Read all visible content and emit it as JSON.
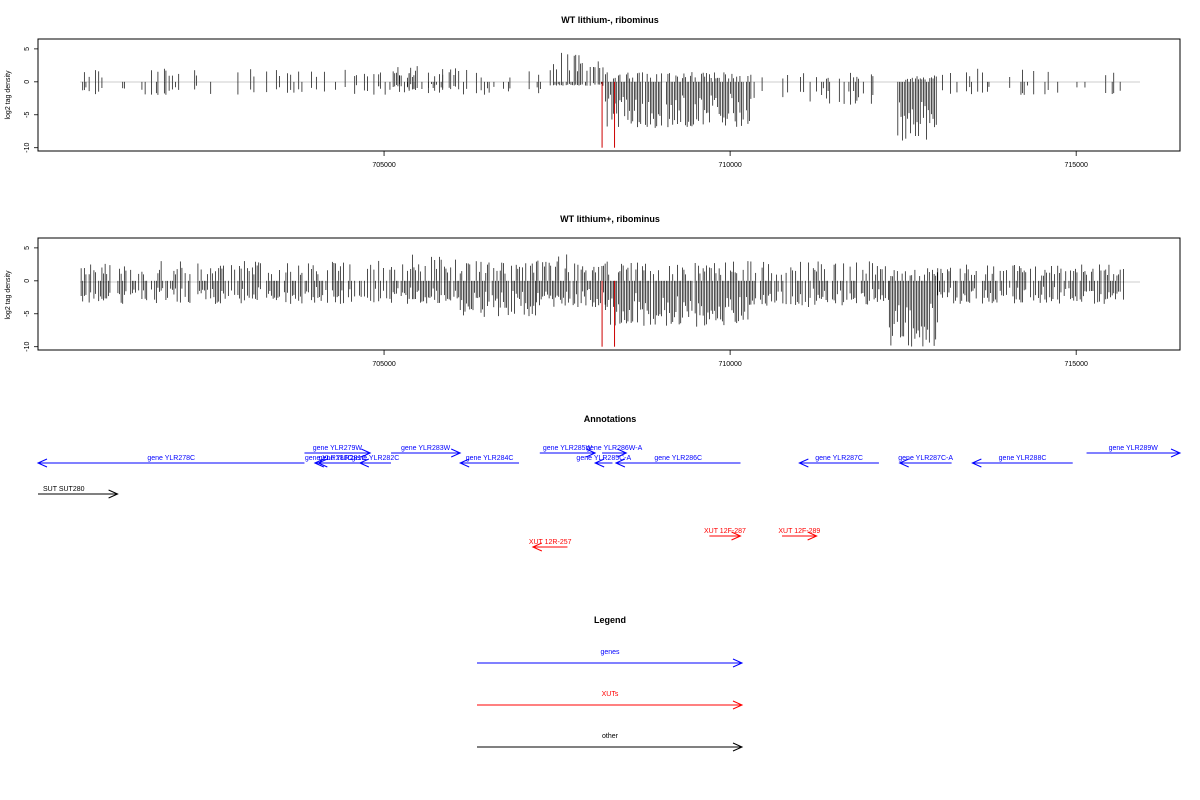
{
  "chart_data": [
    {
      "type": "bar",
      "title": "WT lithium-, ribominus",
      "ylabel": "log2 tag density",
      "xlabel": "",
      "xlim": [
        700000,
        716500
      ],
      "ylim": [
        -10.5,
        6.5
      ],
      "xticks": [
        705000,
        710000,
        715000
      ],
      "xtick_labels": [
        "705000",
        "710000",
        "715000"
      ],
      "yticks": [
        5,
        0,
        -5,
        -10
      ],
      "ytick_labels": [
        "5",
        "0",
        "-5",
        "-10"
      ],
      "grid": false,
      "markers": [
        {
          "x": 708150,
          "y": -10,
          "color": "#cc0000"
        },
        {
          "x": 708330,
          "y": -10,
          "color": "#cc0000"
        }
      ],
      "density_profile": [
        {
          "x": [
            700600,
            707400
          ],
          "pos": 2.0,
          "neg": -2.0,
          "density": 0.25
        },
        {
          "x": [
            704900,
            706100
          ],
          "pos": 3.0,
          "neg": -1.2,
          "density": 0.55
        },
        {
          "x": [
            707400,
            708200
          ],
          "pos": 4.8,
          "neg": -0.6,
          "density": 0.85
        },
        {
          "x": [
            708200,
            710300
          ],
          "pos": 1.5,
          "neg": -7.0,
          "density": 0.95
        },
        {
          "x": [
            710300,
            711300
          ],
          "pos": 1.5,
          "neg": -3.0,
          "density": 0.25
        },
        {
          "x": [
            711300,
            712100
          ],
          "pos": 1.5,
          "neg": -3.5,
          "density": 0.55
        },
        {
          "x": [
            712400,
            713000
          ],
          "pos": 1.0,
          "neg": -9.5,
          "density": 0.95
        },
        {
          "x": [
            713000,
            715700
          ],
          "pos": 2.0,
          "neg": -2.0,
          "density": 0.2
        }
      ]
    },
    {
      "type": "bar",
      "title": "WT lithium+, ribominus",
      "ylabel": "log2 tag density",
      "xlabel": "",
      "xlim": [
        700000,
        716500
      ],
      "ylim": [
        -10.5,
        6.5
      ],
      "xticks": [
        705000,
        710000,
        715000
      ],
      "xtick_labels": [
        "705000",
        "710000",
        "715000"
      ],
      "yticks": [
        5,
        0,
        -5,
        -10
      ],
      "ytick_labels": [
        "5",
        "0",
        "-5",
        "-10"
      ],
      "grid": false,
      "markers": [
        {
          "x": 708150,
          "y": -10,
          "color": "#cc0000"
        },
        {
          "x": 708330,
          "y": -10,
          "color": "#cc0000"
        }
      ],
      "density_profile": [
        {
          "x": [
            700600,
            704900
          ],
          "pos": 3.0,
          "neg": -3.5,
          "density": 0.75
        },
        {
          "x": [
            704900,
            706100
          ],
          "pos": 4.0,
          "neg": -3.5,
          "density": 0.9
        },
        {
          "x": [
            706100,
            707200
          ],
          "pos": 3.0,
          "neg": -5.5,
          "density": 0.9
        },
        {
          "x": [
            707200,
            708200
          ],
          "pos": 4.0,
          "neg": -4.0,
          "density": 0.9
        },
        {
          "x": [
            708200,
            710300
          ],
          "pos": 3.0,
          "neg": -7.0,
          "density": 0.98
        },
        {
          "x": [
            710300,
            712300
          ],
          "pos": 3.0,
          "neg": -4.0,
          "density": 0.8
        },
        {
          "x": [
            712300,
            713000
          ],
          "pos": 2.0,
          "neg": -10.0,
          "density": 0.98
        },
        {
          "x": [
            713000,
            715700
          ],
          "pos": 2.5,
          "neg": -3.5,
          "density": 0.7
        }
      ]
    }
  ],
  "annotations": {
    "title": "Annotations",
    "color_genes": "#0000ff",
    "color_xuts": "#ff0000",
    "color_other": "#000000",
    "features": [
      {
        "label": "gene YLR278C",
        "start": 700000,
        "end": 703850,
        "strand": "-",
        "class": "genes",
        "row": 1
      },
      {
        "label": "gene YLR279W",
        "start": 703850,
        "end": 704800,
        "strand": "+",
        "class": "genes",
        "row": 0
      },
      {
        "label": "gene YLR280C",
        "start": 704000,
        "end": 704400,
        "strand": "-",
        "class": "genes",
        "row": 1
      },
      {
        "label": "gene YLR281C",
        "start": 704050,
        "end": 704750,
        "strand": "-",
        "class": "genes",
        "row": 1
      },
      {
        "label": "gene YLR282C",
        "start": 704650,
        "end": 705100,
        "strand": "-",
        "class": "genes",
        "row": 1
      },
      {
        "label": "gene YLR283W",
        "start": 705100,
        "end": 706100,
        "strand": "+",
        "class": "genes",
        "row": 0
      },
      {
        "label": "gene YLR284C",
        "start": 706100,
        "end": 706950,
        "strand": "-",
        "class": "genes",
        "row": 1
      },
      {
        "label": "gene YLR285W",
        "start": 707250,
        "end": 708050,
        "strand": "+",
        "class": "genes",
        "row": 0
      },
      {
        "label": "gene YLR285C-A",
        "start": 708050,
        "end": 708300,
        "strand": "-",
        "class": "genes",
        "row": 1
      },
      {
        "label": "gene YLR286W-A",
        "start": 708150,
        "end": 708500,
        "strand": "+",
        "class": "genes",
        "row": 0
      },
      {
        "label": "gene YLR286C",
        "start": 708350,
        "end": 710150,
        "strand": "-",
        "class": "genes",
        "row": 1
      },
      {
        "label": "gene YLR287C",
        "start": 711000,
        "end": 712150,
        "strand": "-",
        "class": "genes",
        "row": 1
      },
      {
        "label": "gene YLR287C-A",
        "start": 712450,
        "end": 713200,
        "strand": "-",
        "class": "genes",
        "row": 1
      },
      {
        "label": "gene YLR288C",
        "start": 713500,
        "end": 714950,
        "strand": "-",
        "class": "genes",
        "row": 1
      },
      {
        "label": "gene YLR289W",
        "start": 715150,
        "end": 716500,
        "strand": "+",
        "class": "genes",
        "row": 0
      },
      {
        "label": "SUT SUT280",
        "start": 700000,
        "end": 701150,
        "strand": "+",
        "class": "other",
        "row": 3
      },
      {
        "label": "XUT 12R-257",
        "start": 707150,
        "end": 707650,
        "strand": "-",
        "class": "xuts",
        "row": 6
      },
      {
        "label": "XUT 12F-287",
        "start": 709700,
        "end": 710150,
        "strand": "+",
        "class": "xuts",
        "row": 5
      },
      {
        "label": "XUT 12F-289",
        "start": 710750,
        "end": 711250,
        "strand": "+",
        "class": "xuts",
        "row": 5
      }
    ]
  },
  "legend": {
    "title": "Legend",
    "items": [
      {
        "label": "genes",
        "color": "#0000ff"
      },
      {
        "label": "XUTs",
        "color": "#ff0000"
      },
      {
        "label": "other",
        "color": "#000000"
      }
    ]
  }
}
